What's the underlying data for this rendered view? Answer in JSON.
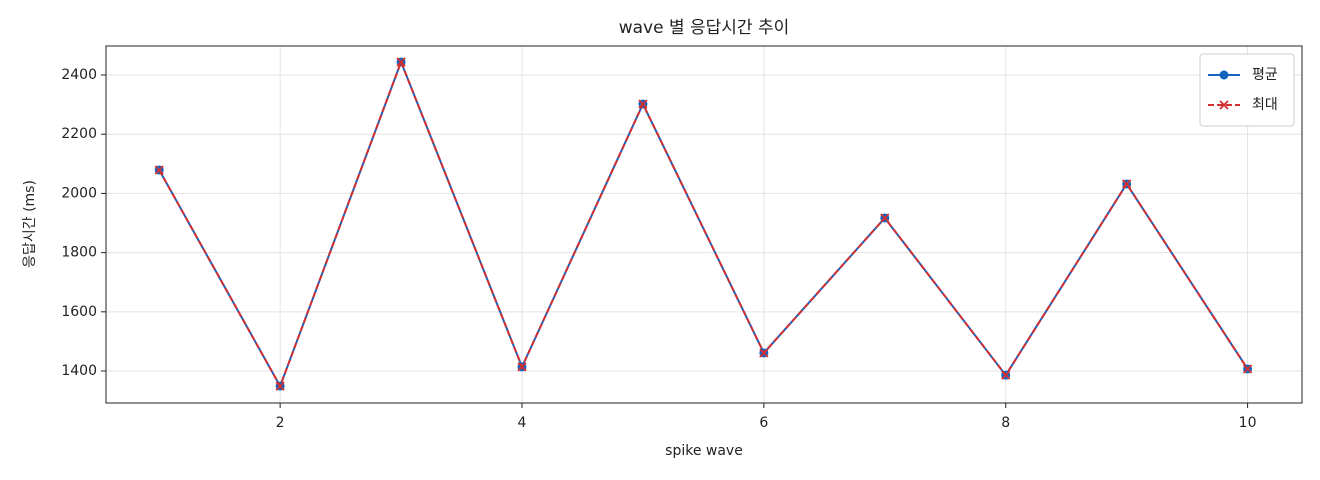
{
  "chart_data": {
    "type": "line",
    "title": "wave 별 응답시간 추이",
    "x_label": "spike wave",
    "y_label": "응답시간 (ms)",
    "x": [
      1,
      2,
      3,
      4,
      5,
      6,
      7,
      8,
      9,
      10
    ],
    "series": [
      {
        "name": "평균",
        "color": "#1565c0",
        "marker": "circle",
        "dash": false,
        "values": [
          2079,
          1349,
          2444,
          1414,
          2302,
          1461,
          1917,
          1386,
          2032,
          1407
        ]
      },
      {
        "name": "최대",
        "color": "#d32f2f",
        "marker": "x",
        "dash": true,
        "values": [
          2079,
          1349,
          2444,
          1414,
          2302,
          1461,
          1917,
          1386,
          2032,
          1407
        ]
      }
    ],
    "xlim": [
      0.56,
      10.45
    ],
    "xticks": [
      2,
      4,
      6,
      8,
      10
    ],
    "ylim": [
      1292,
      2498
    ],
    "yticks": [
      1400,
      1600,
      1800,
      2000,
      2200,
      2400
    ],
    "grid": true,
    "legend": "upper right"
  }
}
